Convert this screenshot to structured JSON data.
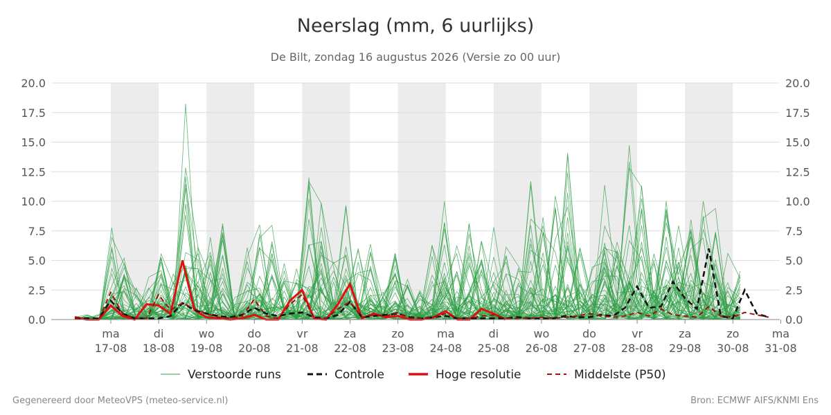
{
  "title": "Neerslag (mm, 6 uurlijks)",
  "subtitle": "De Bilt, zondag 16 augustus 2026 (Versie zo 00 uur)",
  "footer_left": "Gegenereerd door MeteoVPS (meteo-service.nl)",
  "footer_right": "Bron: ECMWF AIFS/KNMI Ens",
  "colors": {
    "ensemble": "#2e9e44",
    "control": "#111111",
    "hires": "#e01010",
    "median": "#a01010",
    "weekend_band": "#ececec"
  },
  "chart_data": {
    "type": "line",
    "title": "Neerslag (mm, 6 uurlijks)",
    "ylim": [
      0,
      20
    ],
    "yticks": [
      "0.0",
      "2.5",
      "5.0",
      "7.5",
      "10.0",
      "12.5",
      "15.0",
      "17.5",
      "20.0"
    ],
    "x_day_labels": [
      {
        "day": "ma",
        "date": "17-08"
      },
      {
        "day": "di",
        "date": "18-08"
      },
      {
        "day": "wo",
        "date": "19-08"
      },
      {
        "day": "do",
        "date": "20-08"
      },
      {
        "day": "vr",
        "date": "21-08"
      },
      {
        "day": "za",
        "date": "22-08"
      },
      {
        "day": "zo",
        "date": "23-08"
      },
      {
        "day": "ma",
        "date": "24-08"
      },
      {
        "day": "di",
        "date": "25-08"
      },
      {
        "day": "wo",
        "date": "26-08"
      },
      {
        "day": "do",
        "date": "27-08"
      },
      {
        "day": "vr",
        "date": "28-08"
      },
      {
        "day": "za",
        "date": "29-08"
      },
      {
        "day": "zo",
        "date": "30-08"
      },
      {
        "day": "ma",
        "date": "31-08"
      }
    ],
    "shaded_days": [
      "17-08",
      "19-08",
      "21-08",
      "23-08",
      "25-08",
      "27-08",
      "29-08"
    ],
    "legend": [
      "Verstoorde runs",
      "Controle",
      "Hoge resolutie",
      "Middelste (P50)"
    ],
    "series": [
      {
        "name": "Hoge resolutie",
        "style": "solid",
        "color": "#e01010",
        "values": [
          0.2,
          0,
          0,
          1.2,
          0.3,
          0,
          1.3,
          1.2,
          0.5,
          5,
          0.8,
          0.2,
          0.1,
          0,
          0.1,
          0.4,
          0,
          0,
          1.6,
          2.5,
          0.1,
          0,
          1.3,
          3,
          0.1,
          0.5,
          0.2,
          0.3,
          0,
          0,
          0.2,
          0.7,
          0,
          0,
          0.9,
          0.5,
          0
        ]
      },
      {
        "name": "Controle",
        "style": "dashed",
        "color": "#111111",
        "values": [
          0.1,
          0.1,
          0.1,
          1.6,
          0.5,
          0.1,
          0.1,
          0.1,
          0.3,
          1.4,
          0.8,
          0.5,
          0.3,
          0.2,
          0.4,
          1.0,
          0.5,
          0.3,
          0.5,
          0.6,
          0.2,
          0.1,
          0.4,
          1.5,
          0.2,
          0.3,
          0.4,
          0.5,
          0.2,
          0.1,
          0.2,
          0.3,
          0.1,
          0.1,
          0.1,
          0.1,
          0.1,
          0.2,
          0.1,
          0.1,
          0.1,
          0.3,
          0.2,
          0.2,
          0.4,
          0.3,
          1.0,
          2.8,
          1.0,
          1.1,
          3.2,
          1.8,
          0.9,
          6.0,
          0.3,
          0.1,
          2.5,
          0.5,
          0.2
        ]
      },
      {
        "name": "Middelste (P50)",
        "style": "dashed",
        "color": "#a01010",
        "values": [
          0.1,
          0,
          0,
          2.3,
          0.5,
          0.1,
          0.1,
          2.1,
          0.8,
          1.4,
          0.9,
          0.5,
          0.2,
          0.1,
          0.3,
          1.7,
          0.3,
          0.1,
          1.3,
          2.1,
          0.1,
          0.1,
          0.9,
          1.5,
          0.2,
          0.4,
          0.3,
          0.6,
          0.1,
          0.1,
          0.2,
          0.5,
          0.1,
          0.1,
          0.3,
          0.4,
          0.1,
          0.1,
          0.1,
          0.2,
          0.1,
          0.2,
          0.3,
          0.5,
          0.3,
          0.2,
          0.3,
          0.6,
          0.3,
          0.9,
          0.4,
          0.3,
          0.2,
          1.1,
          0.3,
          0.2,
          0.6,
          0.4,
          0.2
        ]
      }
    ],
    "ensemble_peaks": [
      0.3,
      0.5,
      0.5,
      8.2,
      5.2,
      3.6,
      4.0,
      7.9,
      4.5,
      18.6,
      6.3,
      8.0,
      9.0,
      2.0,
      6.4,
      9.8,
      8.6,
      5.0,
      5.3,
      13.5,
      10.1,
      5.4,
      10.9,
      6.3,
      6.9,
      3.0,
      6.0,
      3.6,
      2.5,
      6.6,
      14.2,
      6.6,
      9.5,
      7.3,
      8.0,
      6.3,
      4.6,
      11.9,
      8.7,
      10.8,
      14.1,
      7.6,
      6.6,
      13.5,
      7.2,
      15.9,
      11.4,
      10.5,
      11.5,
      10.7,
      9.7,
      11.4,
      9.4,
      5.8,
      4.6
    ]
  }
}
